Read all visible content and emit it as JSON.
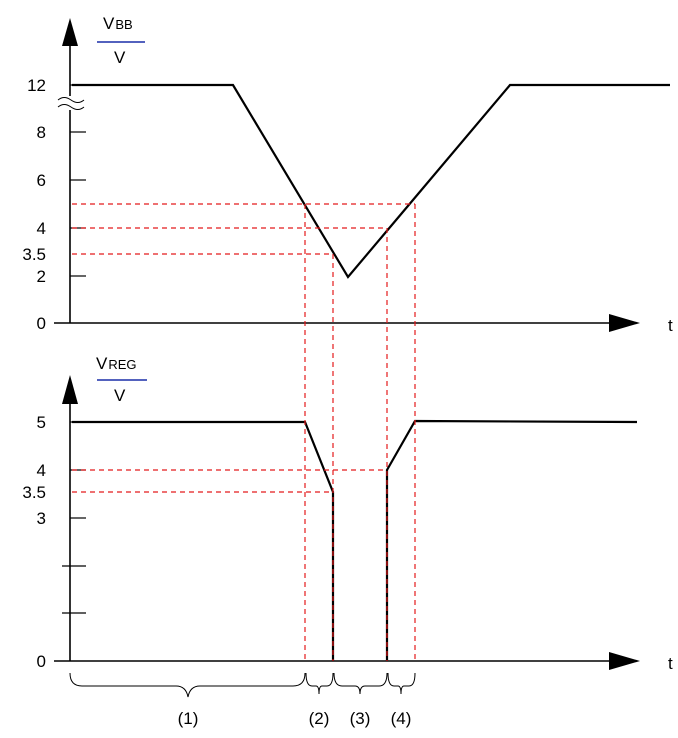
{
  "top_plot": {
    "y_label_main": "V",
    "y_label_sub": "BB",
    "y_unit": "V",
    "x_label": "t",
    "y_ticks": [
      "12",
      "8",
      "6",
      "4",
      "3.5",
      "2",
      "0"
    ],
    "thresholds": [
      "5",
      "4",
      "3.5"
    ]
  },
  "bottom_plot": {
    "y_label_main": "V",
    "y_label_sub": "REG",
    "y_unit": "V",
    "x_label": "t",
    "y_ticks": [
      "5",
      "4",
      "3.5",
      "3",
      "0"
    ]
  },
  "phases": [
    "(1)",
    "(2)",
    "(3)",
    "(4)"
  ],
  "colors": {
    "waveform": "#000000",
    "guides": "#e41a1c",
    "fraction_line": "#1a2fa8"
  },
  "icons": {
    "axis_break": "axis-break-icon",
    "arrowheads": "arrowhead-icon"
  }
}
